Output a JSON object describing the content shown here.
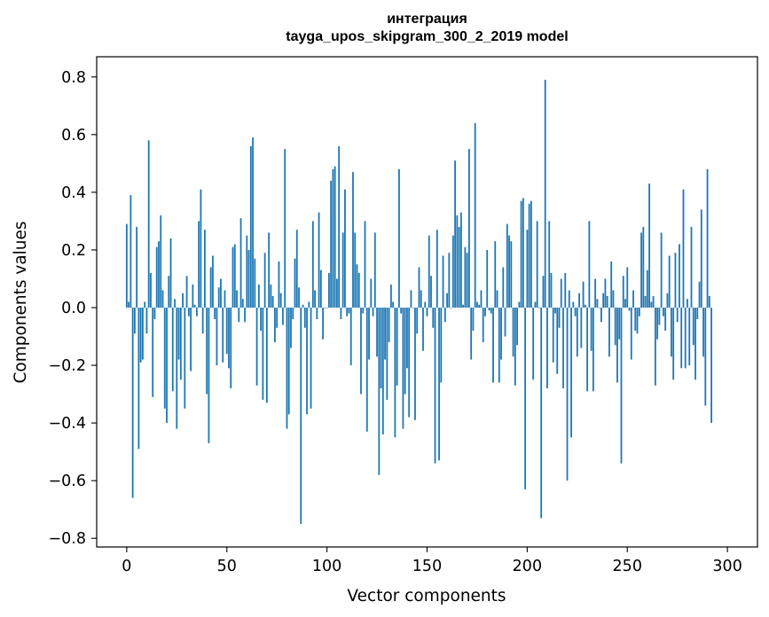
{
  "chart_data": {
    "type": "bar",
    "title_line1": "интеграция",
    "title_line2": "tayga_upos_skipgram_300_2_2019 model",
    "xlabel": "Vector components",
    "ylabel": "Components values",
    "xlim": [
      -15,
      315
    ],
    "ylim": [
      -0.83,
      0.87
    ],
    "xticks": [
      0,
      50,
      100,
      150,
      200,
      250,
      300
    ],
    "xtick_labels": [
      "0",
      "50",
      "100",
      "150",
      "200",
      "250",
      "300"
    ],
    "yticks": [
      -0.8,
      -0.6,
      -0.4,
      -0.2,
      0.0,
      0.2,
      0.4,
      0.6,
      0.8
    ],
    "ytick_labels": [
      "−0.8",
      "−0.6",
      "−0.4",
      "−0.2",
      "0.0",
      "0.2",
      "0.4",
      "0.6",
      "0.8"
    ],
    "grid": false,
    "bar_color": "#1f77b4",
    "values": [
      0.29,
      0.02,
      0.39,
      -0.66,
      -0.09,
      0.28,
      -0.49,
      -0.19,
      -0.18,
      0.02,
      -0.09,
      0.58,
      0.12,
      -0.31,
      -0.04,
      0.21,
      0.23,
      0.32,
      0.06,
      -0.35,
      -0.4,
      0.11,
      0.24,
      -0.29,
      0.03,
      -0.42,
      -0.18,
      -0.25,
      0.05,
      -0.35,
      0.11,
      -0.03,
      -0.22,
      0.08,
      0.01,
      -0.03,
      0.3,
      0.41,
      -0.09,
      0.27,
      -0.3,
      -0.47,
      0.14,
      0.18,
      -0.04,
      -0.2,
      0.07,
      0.1,
      -0.19,
      0.06,
      -0.16,
      -0.21,
      -0.28,
      0.21,
      0.22,
      0.06,
      -0.05,
      0.31,
      0.03,
      -0.05,
      0.25,
      0.2,
      0.56,
      0.59,
      0.17,
      -0.27,
      0.08,
      -0.08,
      -0.32,
      0.19,
      -0.33,
      0.26,
      0.08,
      0.04,
      -0.12,
      -0.07,
      0.16,
      0.05,
      -0.06,
      0.55,
      -0.42,
      -0.37,
      -0.14,
      -0.04,
      0.17,
      0.27,
      0.07,
      -0.75,
      0.01,
      -0.07,
      -0.37,
      0.02,
      -0.35,
      0.3,
      0.06,
      -0.04,
      0.33,
      0.13,
      -0.11,
      0.0,
      0.0,
      0.12,
      0.44,
      0.48,
      0.49,
      0.1,
      0.56,
      -0.04,
      0.26,
      0.41,
      -0.03,
      -0.02,
      -0.2,
      0.47,
      0.26,
      0.15,
      0.12,
      -0.3,
      -0.02,
      0.3,
      -0.43,
      -0.18,
      0.1,
      -0.03,
      0.26,
      -0.17,
      -0.58,
      -0.28,
      -0.44,
      -0.18,
      -0.32,
      -0.12,
      0.08,
      0.02,
      -0.45,
      -0.27,
      0.48,
      -0.02,
      -0.42,
      -0.3,
      -0.21,
      -0.38,
      0.06,
      0.0,
      -0.39,
      -0.09,
      0.14,
      0.06,
      -0.15,
      0.02,
      -0.03,
      0.25,
      0.11,
      -0.07,
      -0.54,
      0.27,
      -0.53,
      -0.26,
      0.18,
      -0.05,
      0.05,
      0.19,
      0.0,
      0.25,
      0.51,
      0.32,
      0.28,
      0.33,
      0.01,
      0.21,
      0.19,
      0.55,
      -0.18,
      -0.08,
      0.64,
      0.02,
      0.01,
      0.06,
      -0.12,
      -0.03,
      0.2,
      -0.01,
      -0.02,
      -0.26,
      0.23,
      0.06,
      -0.26,
      -0.18,
      0.14,
      -0.1,
      0.29,
      0.25,
      0.23,
      -0.17,
      -0.27,
      -0.13,
      0.02,
      0.37,
      0.38,
      -0.63,
      0.27,
      0.36,
      0.37,
      -0.25,
      0.02,
      0.3,
      0.0,
      -0.73,
      0.11,
      0.79,
      -0.28,
      0.3,
      0.12,
      -0.19,
      -0.02,
      -0.23,
      -0.07,
      0.1,
      -0.28,
      0.12,
      -0.6,
      0.06,
      -0.45,
      0.02,
      -0.03,
      -0.17,
      0.05,
      -0.14,
      0.09,
      0.01,
      -0.29,
      0.3,
      -0.15,
      -0.29,
      0.1,
      0.03,
      0.0,
      -0.05,
      0.05,
      0.1,
      0.04,
      -0.17,
      0.16,
      0.06,
      -0.13,
      -0.26,
      -0.11,
      -0.54,
      0.11,
      0.03,
      0.14,
      -0.01,
      -0.18,
      0.06,
      -0.08,
      -0.09,
      -0.03,
      0.26,
      0.28,
      0.04,
      0.13,
      0.43,
      0.02,
      0.04,
      -0.27,
      -0.11,
      -0.06,
      0.26,
      -0.03,
      -0.08,
      0.05,
      0.18,
      -0.17,
      -0.25,
      0.19,
      -0.05,
      0.22,
      -0.21,
      0.41,
      -0.21,
      0.03,
      -0.2,
      0.28,
      -0.13,
      -0.25,
      -0.04,
      0.09,
      0.34,
      -0.17,
      -0.34,
      0.48,
      0.04,
      -0.4
    ]
  }
}
